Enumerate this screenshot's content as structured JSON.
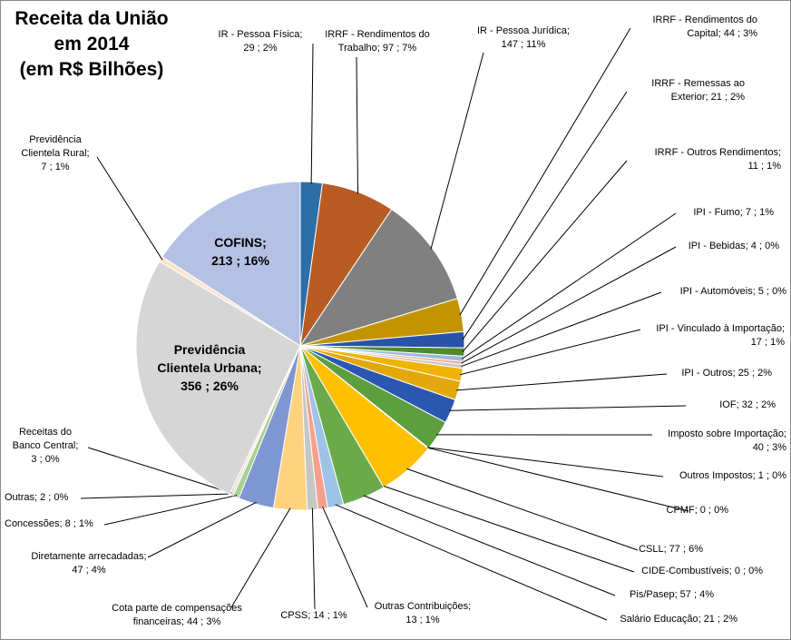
{
  "chart_data": {
    "type": "pie",
    "title": [
      "Receita da União",
      "em 2014",
      "(em R$ Bilhões)"
    ],
    "slices": [
      {
        "name": "IR - Pessoa Física",
        "value": 29,
        "pct": "2%",
        "color": "#2e6ea6"
      },
      {
        "name": "IRRF - Rendimentos do Trabalho",
        "value": 97,
        "pct": "7%",
        "color": "#b85c23"
      },
      {
        "name": "IR - Pessoa Jurídica",
        "value": 147,
        "pct": "11%",
        "color": "#808080"
      },
      {
        "name": "IRRF - Rendimentos do Capital",
        "value": 44,
        "pct": "3%",
        "color": "#c49400"
      },
      {
        "name": "IRRF - Remessas ao Exterior",
        "value": 21,
        "pct": "2%",
        "color": "#2952a8"
      },
      {
        "name": "IRRF - Outros Rendimentos",
        "value": 11,
        "pct": "1%",
        "color": "#4e8a2e"
      },
      {
        "name": "IPI - Fumo",
        "value": 7,
        "pct": "1%",
        "color": "#9cb8dc"
      },
      {
        "name": "IPI - Bebidas",
        "value": 4,
        "pct": "0%",
        "color": "#f2aa8a"
      },
      {
        "name": "IPI - Automóveis",
        "value": 5,
        "pct": "0%",
        "color": "#c9c9c9"
      },
      {
        "name": "IPI - Vinculado à Importação",
        "value": 17,
        "pct": "1%",
        "color": "#f0b400"
      },
      {
        "name": "IPI - Outros",
        "value": 25,
        "pct": "2%",
        "color": "#e2a70a"
      },
      {
        "name": "IOF",
        "value": 32,
        "pct": "2%",
        "color": "#2a58b0"
      },
      {
        "name": "Imposto sobre Importação",
        "value": 40,
        "pct": "3%",
        "color": "#5d9e3e"
      },
      {
        "name": "Outros Impostos",
        "value": 1,
        "pct": "0%",
        "color": "#6fa8dc"
      },
      {
        "name": "CPMF",
        "value": 0,
        "pct": "0%",
        "color": "#ffc000"
      },
      {
        "name": "CSLL",
        "value": 77,
        "pct": "6%",
        "color": "#ffc000"
      },
      {
        "name": "CIDE-Combustíveis",
        "value": 0,
        "pct": "0%",
        "color": "#5a9bd5"
      },
      {
        "name": "Pis/Pasep",
        "value": 57,
        "pct": "4%",
        "color": "#6aaa4a"
      },
      {
        "name": "Salário Educação",
        "value": 21,
        "pct": "2%",
        "color": "#9fc3e6"
      },
      {
        "name": "Outras Contribuições",
        "value": 13,
        "pct": "1%",
        "color": "#f4a08c"
      },
      {
        "name": "CPSS",
        "value": 14,
        "pct": "1%",
        "color": "#c6c6c6"
      },
      {
        "name": "Cota parte de compensações financeiras",
        "value": 44,
        "pct": "3%",
        "color": "#ffd27f"
      },
      {
        "name": "Diretamente arrecadadas",
        "value": 47,
        "pct": "4%",
        "color": "#7f97d1"
      },
      {
        "name": "Concessões",
        "value": 8,
        "pct": "1%",
        "color": "#a8d08d"
      },
      {
        "name": "Outras",
        "value": 2,
        "pct": "0%",
        "color": "#9dc3e6"
      },
      {
        "name": "Receitas do Banco Central",
        "value": 3,
        "pct": "0%",
        "color": "#f8cbad"
      },
      {
        "name": "Previdência Clientela Urbana",
        "value": 356,
        "pct": "26%",
        "color": "#d6d6d6"
      },
      {
        "name": "Previdência Clientela Rural",
        "value": 7,
        "pct": "1%",
        "color": "#fde3c8"
      },
      {
        "name": "COFINS",
        "value": 213,
        "pct": "16%",
        "color": "#b4c0e4"
      }
    ],
    "labels": [
      {
        "lines": [
          "IR - Pessoa Física;",
          "29 ; 2%"
        ]
      },
      {
        "lines": [
          "IRRF - Rendimentos do",
          "Trabalho; 97 ; 7%"
        ]
      },
      {
        "lines": [
          "IR - Pessoa Jurídica;",
          "147 ; 11%"
        ]
      },
      {
        "lines": [
          "IRRF - Rendimentos do",
          "Capital; 44 ; 3%"
        ]
      },
      {
        "lines": [
          "IRRF - Remessas ao",
          "Exterior; 21 ; 2%"
        ]
      },
      {
        "lines": [
          "IRRF - Outros Rendimentos;",
          "11 ; 1%"
        ]
      },
      {
        "lines": [
          "IPI - Fumo; 7 ; 1%"
        ]
      },
      {
        "lines": [
          "IPI - Bebidas; 4 ; 0%"
        ]
      },
      {
        "lines": [
          "IPI - Automóveis; 5 ; 0%"
        ]
      },
      {
        "lines": [
          "IPI - Vinculado à Importação;",
          "17 ; 1%"
        ]
      },
      {
        "lines": [
          "IPI - Outros; 25 ; 2%"
        ]
      },
      {
        "lines": [
          "IOF; 32 ; 2%"
        ]
      },
      {
        "lines": [
          "Imposto sobre Importação;",
          "40 ; 3%"
        ]
      },
      {
        "lines": [
          "Outros Impostos; 1 ; 0%"
        ]
      },
      {
        "lines": [
          "CPMF; 0 ; 0%"
        ]
      },
      {
        "lines": [
          "CSLL; 77 ; 6%"
        ]
      },
      {
        "lines": [
          "CIDE-Combustíveis; 0 ; 0%"
        ]
      },
      {
        "lines": [
          "Pis/Pasep; 57 ; 4%"
        ]
      },
      {
        "lines": [
          "Salário Educação; 21 ; 2%"
        ]
      },
      {
        "lines": [
          "Outras Contribuições;",
          "13 ; 1%"
        ]
      },
      {
        "lines": [
          "CPSS; 14 ; 1%"
        ]
      },
      {
        "lines": [
          "Cota parte de compensações",
          "financeiras; 44 ; 3%"
        ]
      },
      {
        "lines": [
          "Diretamente arrecadadas;",
          "47 ; 4%"
        ]
      },
      {
        "lines": [
          "Concessões; 8 ; 1%"
        ]
      },
      {
        "lines": [
          "Outras; 2 ; 0%"
        ]
      },
      {
        "lines": [
          "Receitas do",
          "Banco Central;",
          "3 ; 0%"
        ]
      },
      {
        "lines": [
          "Previdência",
          "Clientela Urbana;",
          "356 ; 26%"
        ]
      },
      {
        "lines": [
          "Previdência",
          "Clientela Rural;",
          "7 ; 1%"
        ]
      },
      {
        "lines": [
          "COFINS;",
          "213 ; 16%"
        ]
      }
    ]
  }
}
